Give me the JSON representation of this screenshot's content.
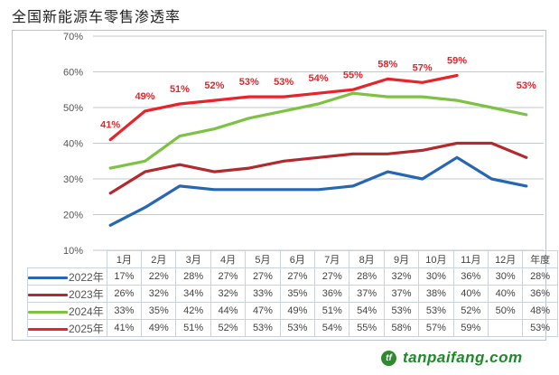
{
  "chart_data": {
    "type": "line",
    "title": "全国新能源车零售渗透率",
    "xlabel": "",
    "ylabel": "",
    "ylim": [
      0.1,
      0.7
    ],
    "yticks": [
      "10%",
      "20%",
      "30%",
      "40%",
      "50%",
      "60%",
      "70%"
    ],
    "ytick_values": [
      0.1,
      0.2,
      0.3,
      0.4,
      0.5,
      0.6,
      0.7
    ],
    "grid": true,
    "legend": "data-table-below",
    "categories": [
      "1月",
      "2月",
      "3月",
      "4月",
      "5月",
      "6月",
      "7月",
      "8月",
      "9月",
      "10月",
      "11月",
      "12月",
      "年度"
    ],
    "series": [
      {
        "name": "2022年",
        "color": "#2766b3",
        "values": [
          0.17,
          0.22,
          0.28,
          0.27,
          0.27,
          0.27,
          0.27,
          0.28,
          0.32,
          0.3,
          0.36,
          0.3,
          0.28
        ],
        "labels": [
          "17%",
          "22%",
          "28%",
          "27%",
          "27%",
          "27%",
          "27%",
          "28%",
          "32%",
          "30%",
          "36%",
          "30%",
          "28%"
        ]
      },
      {
        "name": "2023年",
        "color": "#b22a2e",
        "values": [
          0.26,
          0.32,
          0.34,
          0.32,
          0.33,
          0.35,
          0.36,
          0.37,
          0.37,
          0.38,
          0.4,
          0.4,
          0.36
        ],
        "labels": [
          "26%",
          "32%",
          "34%",
          "32%",
          "33%",
          "35%",
          "36%",
          "37%",
          "37%",
          "38%",
          "40%",
          "40%",
          "36%"
        ]
      },
      {
        "name": "2024年",
        "color": "#7dc242",
        "values": [
          0.33,
          0.35,
          0.42,
          0.44,
          0.47,
          0.49,
          0.51,
          0.54,
          0.53,
          0.53,
          0.52,
          0.5,
          0.48
        ],
        "labels": [
          "33%",
          "35%",
          "42%",
          "44%",
          "47%",
          "49%",
          "51%",
          "54%",
          "53%",
          "53%",
          "52%",
          "50%",
          "48%"
        ]
      },
      {
        "name": "2025年",
        "color": "#e8232a",
        "values": [
          0.41,
          0.49,
          0.51,
          0.52,
          0.53,
          0.53,
          0.54,
          0.55,
          0.58,
          0.57,
          0.59,
          null,
          0.53
        ],
        "labels": [
          "41%",
          "49%",
          "51%",
          "52%",
          "53%",
          "53%",
          "54%",
          "55%",
          "58%",
          "57%",
          "59%",
          "",
          "53%"
        ],
        "data_labels_shown": true,
        "annual_as_marker_only": true
      }
    ]
  },
  "watermark": {
    "text": "tanpaifang.com",
    "mark": "tf"
  }
}
